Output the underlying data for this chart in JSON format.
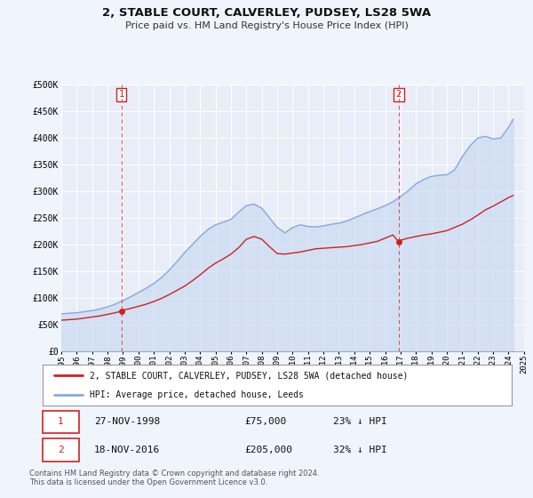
{
  "title": "2, STABLE COURT, CALVERLEY, PUDSEY, LS28 5WA",
  "subtitle": "Price paid vs. HM Land Registry's House Price Index (HPI)",
  "background_color": "#f0f4fc",
  "plot_bg_color": "#e8edf8",
  "red_line_color": "#cc2222",
  "blue_line_color": "#88aadd",
  "sale1_date": 1998.9,
  "sale1_price": 75000,
  "sale2_date": 2016.88,
  "sale2_price": 205000,
  "ylim": [
    0,
    500000
  ],
  "xlim": [
    1995,
    2025
  ],
  "yticks": [
    0,
    50000,
    100000,
    150000,
    200000,
    250000,
    300000,
    350000,
    400000,
    450000,
    500000
  ],
  "ytick_labels": [
    "£0",
    "£50K",
    "£100K",
    "£150K",
    "£200K",
    "£250K",
    "£300K",
    "£350K",
    "£400K",
    "£450K",
    "£500K"
  ],
  "legend_label_red": "2, STABLE COURT, CALVERLEY, PUDSEY, LS28 5WA (detached house)",
  "legend_label_blue": "HPI: Average price, detached house, Leeds",
  "footer": "Contains HM Land Registry data © Crown copyright and database right 2024.\nThis data is licensed under the Open Government Licence v3.0.",
  "xticks": [
    1995,
    1996,
    1997,
    1998,
    1999,
    2000,
    2001,
    2002,
    2003,
    2004,
    2005,
    2006,
    2007,
    2008,
    2009,
    2010,
    2011,
    2012,
    2013,
    2014,
    2015,
    2016,
    2017,
    2018,
    2019,
    2020,
    2021,
    2022,
    2023,
    2024,
    2025
  ],
  "hpi_years": [
    1995,
    1995.5,
    1996,
    1996.5,
    1997,
    1997.5,
    1998,
    1998.5,
    1999,
    1999.5,
    2000,
    2000.5,
    2001,
    2001.5,
    2002,
    2002.5,
    2003,
    2003.5,
    2004,
    2004.5,
    2005,
    2005.5,
    2006,
    2006.5,
    2007,
    2007.5,
    2008,
    2008.5,
    2009,
    2009.5,
    2010,
    2010.5,
    2011,
    2011.5,
    2012,
    2012.5,
    2013,
    2013.5,
    2014,
    2014.5,
    2015,
    2015.5,
    2016,
    2016.5,
    2017,
    2017.5,
    2018,
    2018.5,
    2019,
    2019.5,
    2020,
    2020.5,
    2021,
    2021.5,
    2022,
    2022.5,
    2023,
    2023.5,
    2024,
    2024.3
  ],
  "hpi_values": [
    70000,
    71000,
    72000,
    74000,
    76000,
    79000,
    83000,
    88000,
    95000,
    102000,
    110000,
    118000,
    127000,
    138000,
    152000,
    168000,
    185000,
    200000,
    215000,
    228000,
    237000,
    242000,
    247000,
    261000,
    273000,
    276000,
    268000,
    250000,
    232000,
    222000,
    232000,
    237000,
    234000,
    233000,
    235000,
    238000,
    240000,
    244000,
    250000,
    256000,
    262000,
    267000,
    273000,
    280000,
    290000,
    301000,
    314000,
    322000,
    328000,
    330000,
    331000,
    340000,
    365000,
    385000,
    400000,
    403000,
    398000,
    400000,
    420000,
    435000
  ],
  "red_years": [
    1995,
    1995.5,
    1996,
    1996.5,
    1997,
    1997.5,
    1998,
    1998.5,
    1998.9,
    1999,
    1999.5,
    2000,
    2000.5,
    2001,
    2001.5,
    2002,
    2002.5,
    2003,
    2003.5,
    2004,
    2004.5,
    2005,
    2005.5,
    2006,
    2006.5,
    2007,
    2007.5,
    2008,
    2008.5,
    2009,
    2009.5,
    2010,
    2010.5,
    2011,
    2011.5,
    2012,
    2012.5,
    2013,
    2013.5,
    2014,
    2014.5,
    2015,
    2015.5,
    2016,
    2016.5,
    2016.88,
    2017,
    2017.5,
    2018,
    2018.5,
    2019,
    2019.5,
    2020,
    2020.5,
    2021,
    2021.5,
    2022,
    2022.5,
    2023,
    2023.5,
    2024,
    2024.3
  ],
  "red_values": [
    58000,
    59000,
    60000,
    62000,
    64000,
    66000,
    69000,
    72000,
    75000,
    77000,
    80000,
    84000,
    88000,
    93000,
    99000,
    106000,
    114000,
    122000,
    132000,
    143000,
    155000,
    165000,
    173000,
    182000,
    194000,
    210000,
    215000,
    210000,
    196000,
    183000,
    182000,
    184000,
    186000,
    189000,
    192000,
    193000,
    194000,
    195000,
    196000,
    198000,
    200000,
    203000,
    206000,
    212000,
    218000,
    205000,
    208000,
    212000,
    215000,
    218000,
    220000,
    223000,
    226000,
    232000,
    238000,
    246000,
    255000,
    265000,
    272000,
    280000,
    288000,
    292000
  ]
}
